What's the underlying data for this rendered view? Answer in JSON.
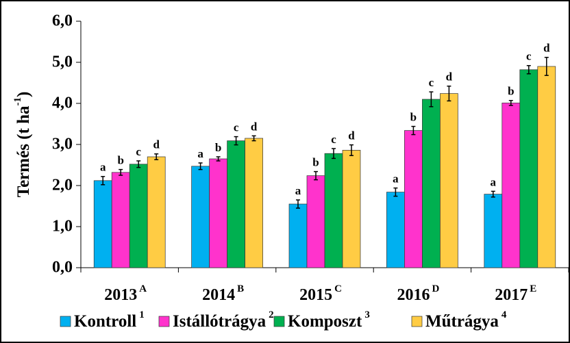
{
  "chart_data": {
    "type": "bar",
    "ylabel": "Termés (t ha",
    "ylabel_superscript": "-1",
    "ylabel_suffix": ")",
    "categories": [
      "2013",
      "2014",
      "2015",
      "2016",
      "2017"
    ],
    "category_superscripts": [
      "A",
      "B",
      "C",
      "D",
      "E"
    ],
    "series": [
      {
        "name": "Kontroll",
        "superscript": "1",
        "color": "#00b0f0",
        "values": [
          2.12,
          2.47,
          1.55,
          1.84,
          1.79
        ],
        "errors": [
          0.1,
          0.08,
          0.1,
          0.1,
          0.07
        ],
        "letters": [
          "a",
          "a",
          "a",
          "a",
          "a"
        ]
      },
      {
        "name": "Istállótrágya",
        "superscript": "2",
        "color": "#ff33cc",
        "values": [
          2.32,
          2.65,
          2.24,
          3.34,
          4.01
        ],
        "errors": [
          0.07,
          0.05,
          0.1,
          0.1,
          0.06
        ],
        "letters": [
          "b",
          "b",
          "b",
          "b",
          "b"
        ]
      },
      {
        "name": "Komposzt",
        "superscript": "3",
        "color": "#00b050",
        "values": [
          2.52,
          3.09,
          2.78,
          4.1,
          4.82
        ],
        "errors": [
          0.08,
          0.1,
          0.12,
          0.18,
          0.1
        ],
        "letters": [
          "c",
          "c",
          "c",
          "c",
          "c"
        ]
      },
      {
        "name": "Műtrágya",
        "superscript": "4",
        "color": "#ffcc44",
        "values": [
          2.7,
          3.15,
          2.86,
          4.24,
          4.9
        ],
        "errors": [
          0.07,
          0.06,
          0.13,
          0.18,
          0.22
        ],
        "letters": [
          "d",
          "d",
          "d",
          "d",
          "d"
        ]
      }
    ],
    "ylim": [
      0,
      6
    ],
    "yticks": [
      {
        "value": 0,
        "label": "0,0"
      },
      {
        "value": 1,
        "label": "1,0"
      },
      {
        "value": 2,
        "label": "2,0"
      },
      {
        "value": 3,
        "label": "3,0"
      },
      {
        "value": 4,
        "label": "4,0"
      },
      {
        "value": 5,
        "label": "5,0"
      },
      {
        "value": 6,
        "label": "6,0"
      }
    ]
  }
}
